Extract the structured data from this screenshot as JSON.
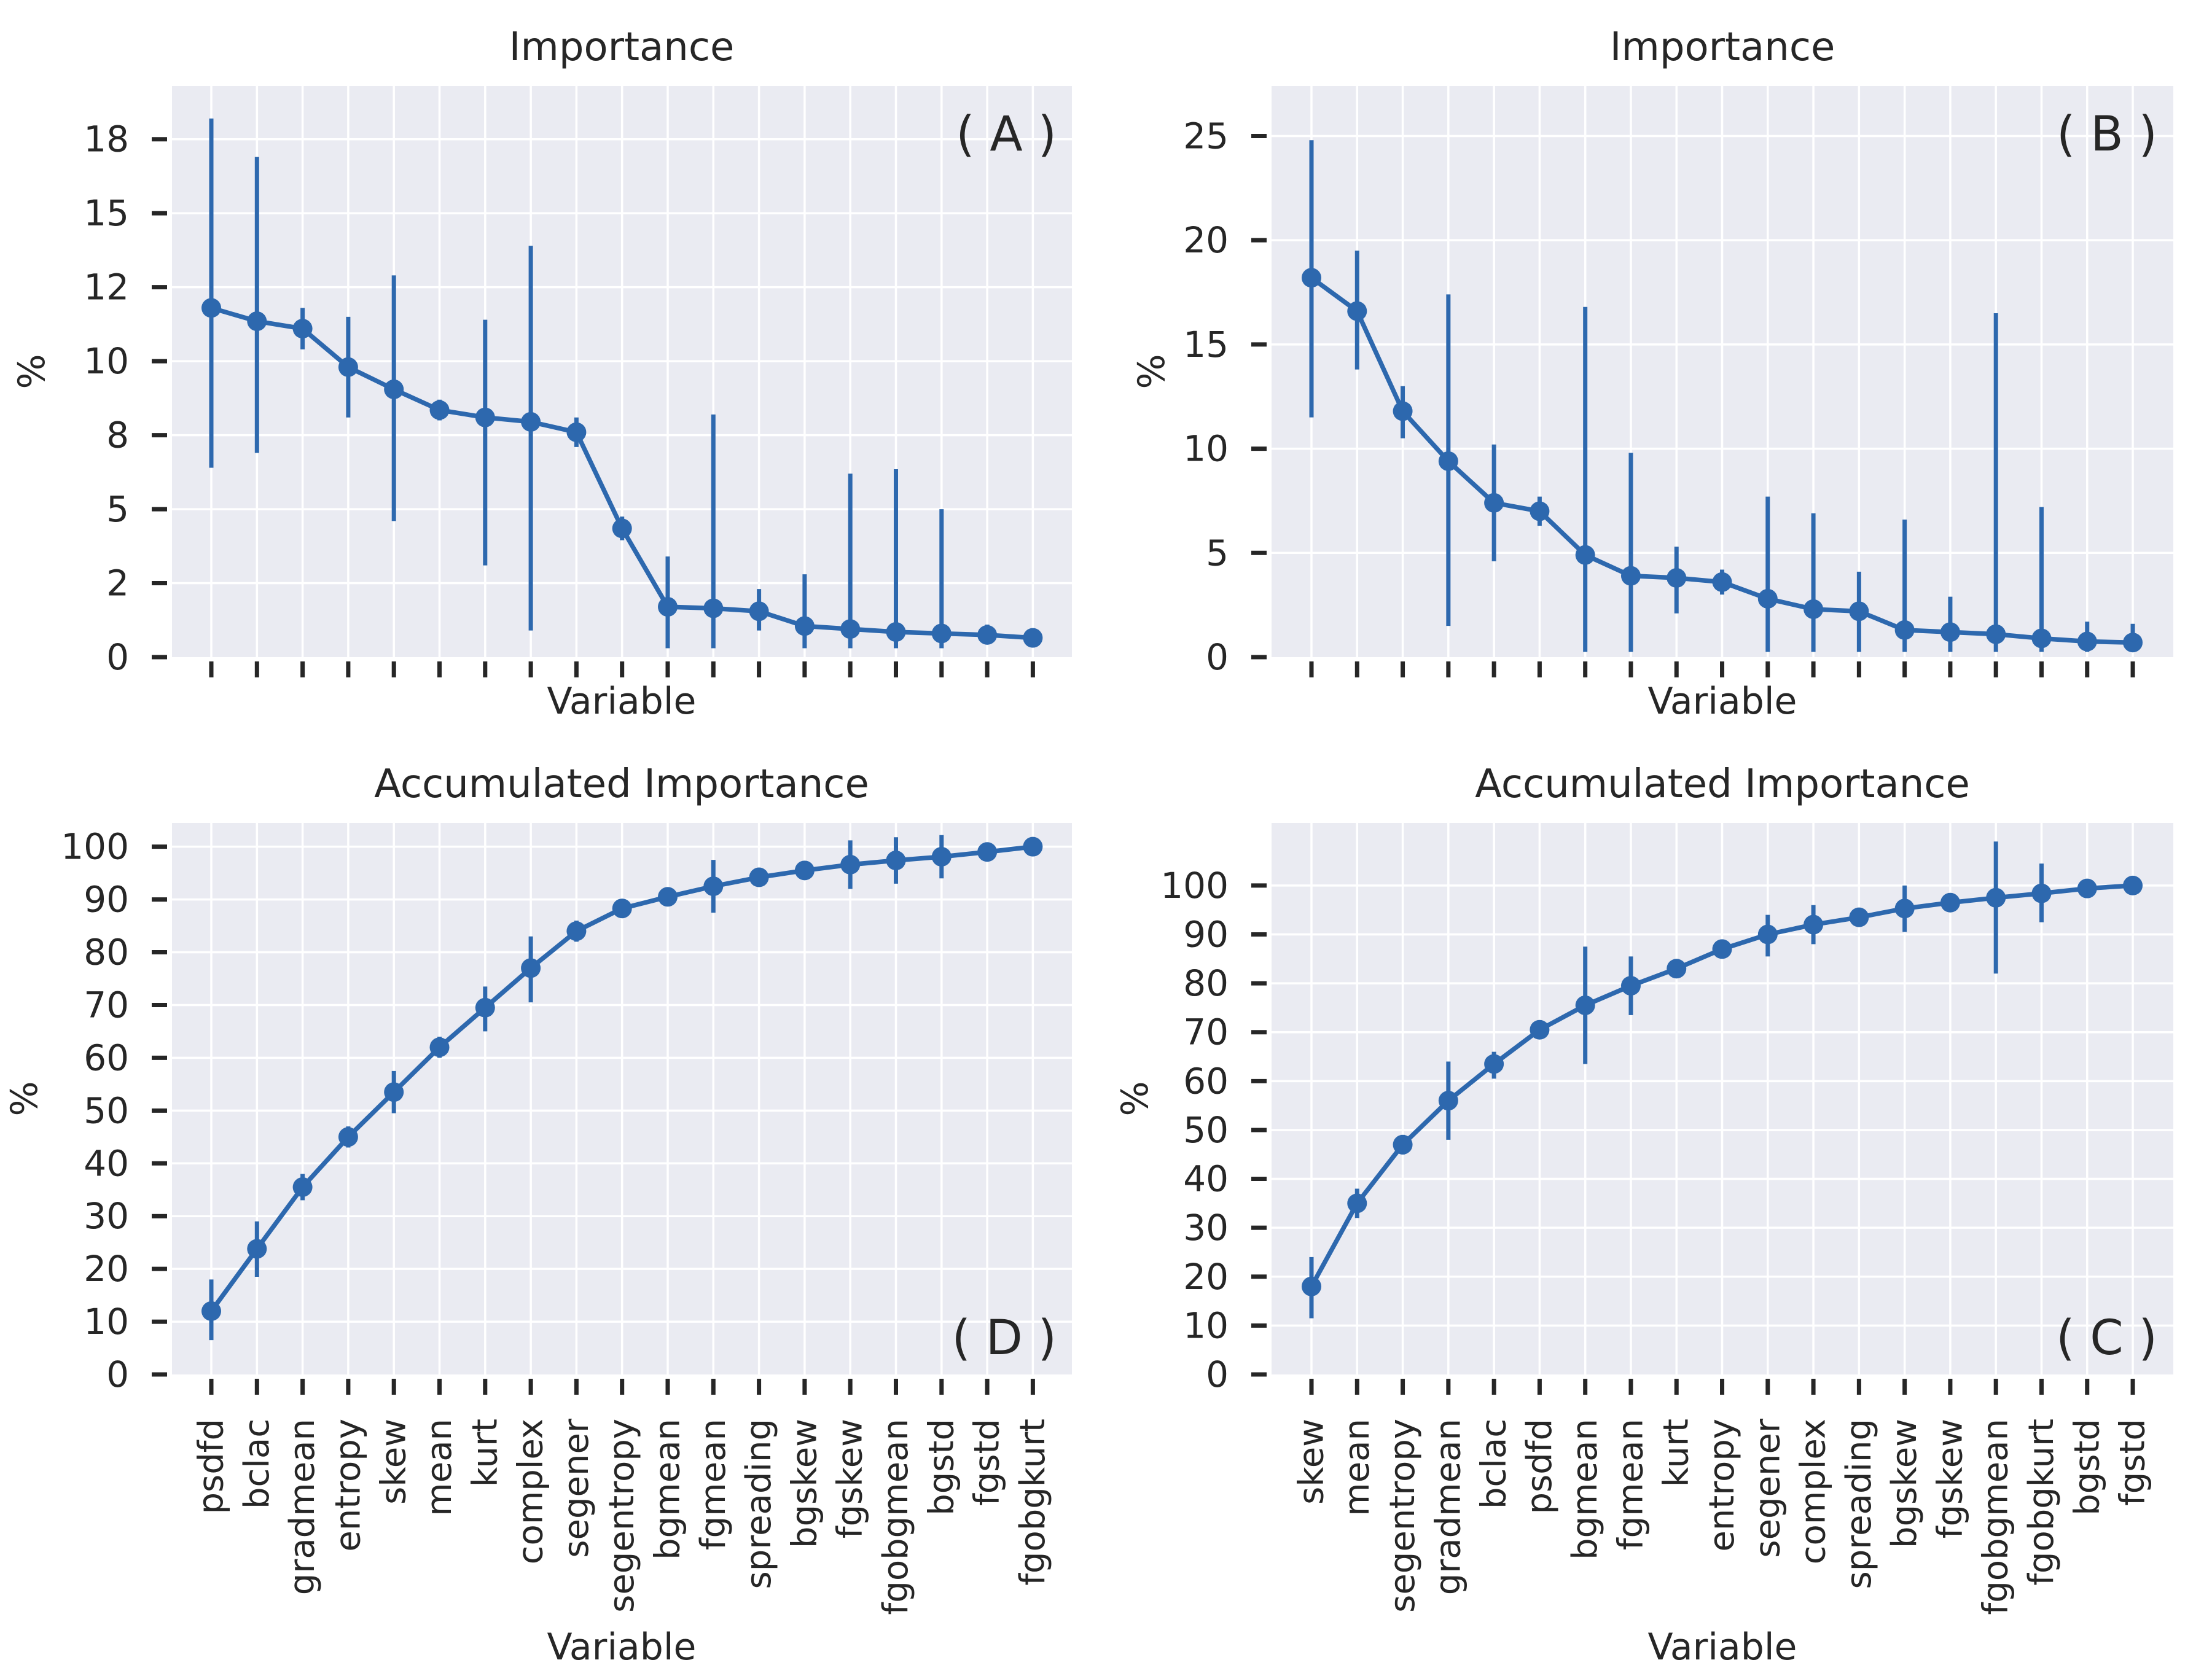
{
  "figure": {
    "background": "#ffffff",
    "plot_background": "#eaebf2",
    "grid_color": "#ffffff",
    "line_color": "#2d68ae",
    "tick_mark_color": "#262626",
    "text_color": "#262626"
  },
  "chart_data": [
    {
      "id": "A",
      "type": "line",
      "title": "Importance",
      "corner_label": "( A )",
      "corner_position": "top-right",
      "xlabel": "Variable",
      "ylabel": "%",
      "ylim": [
        0,
        19.3
      ],
      "yticks": [
        0,
        2.5,
        5,
        7.5,
        10,
        12.5,
        15,
        17.5
      ],
      "ytick_labels": [
        "0",
        "2",
        "5",
        "8",
        "10",
        "12",
        "15",
        "18"
      ],
      "grid": true,
      "show_category_labels": false,
      "categories": [
        "psdfd",
        "bclac",
        "gradmean",
        "entropy",
        "skew",
        "mean",
        "kurt",
        "complex",
        "segener",
        "segentropy",
        "bgmean",
        "fgmean",
        "spreading",
        "bgskew",
        "fgskew",
        "fgobgmean",
        "bgstd",
        "fgstd",
        "fgobgkurt"
      ],
      "values": [
        11.8,
        11.35,
        11.1,
        9.8,
        9.05,
        8.35,
        8.1,
        7.95,
        7.6,
        4.35,
        1.7,
        1.65,
        1.55,
        1.05,
        0.95,
        0.85,
        0.8,
        0.75,
        0.65
      ],
      "err_low": [
        6.4,
        6.9,
        10.4,
        8.1,
        4.6,
        8.0,
        3.1,
        0.9,
        7.1,
        3.95,
        0.3,
        0.3,
        0.9,
        0.3,
        0.3,
        0.3,
        0.3,
        0.5,
        0.65
      ],
      "err_high": [
        18.2,
        16.9,
        11.8,
        11.5,
        12.9,
        8.7,
        11.4,
        13.9,
        8.1,
        4.75,
        3.4,
        8.2,
        2.3,
        2.8,
        6.2,
        6.35,
        5.0,
        1.1,
        0.65
      ]
    },
    {
      "id": "B",
      "type": "line",
      "title": "Importance",
      "corner_label": "( B )",
      "corner_position": "top-right",
      "xlabel": "Variable",
      "ylabel": "%",
      "ylim": [
        0,
        27.4
      ],
      "yticks": [
        0,
        5,
        10,
        15,
        20,
        25
      ],
      "ytick_labels": [
        "0",
        "5",
        "10",
        "15",
        "20",
        "25"
      ],
      "grid": true,
      "show_category_labels": false,
      "categories": [
        "skew",
        "mean",
        "segentropy",
        "gradmean",
        "bclac",
        "psdfd",
        "bgmean",
        "fgmean",
        "kurt",
        "entropy",
        "segener",
        "complex",
        "spreading",
        "bgskew",
        "fgskew",
        "fgobgmean",
        "fgobgkurt",
        "bgstd",
        "fgstd"
      ],
      "values": [
        18.2,
        16.6,
        11.8,
        9.4,
        7.4,
        7.0,
        4.9,
        3.9,
        3.8,
        3.6,
        2.8,
        2.3,
        2.2,
        1.3,
        1.2,
        1.1,
        0.9,
        0.75,
        0.7
      ],
      "err_low": [
        11.5,
        13.8,
        10.5,
        1.5,
        4.6,
        6.3,
        0.25,
        0.25,
        2.1,
        3.0,
        0.25,
        0.25,
        0.25,
        0.25,
        0.25,
        0.25,
        0.25,
        0.25,
        0.25
      ],
      "err_high": [
        24.8,
        19.5,
        13.0,
        17.4,
        10.2,
        7.7,
        16.8,
        9.8,
        5.3,
        4.2,
        7.7,
        6.9,
        4.1,
        6.6,
        2.9,
        16.5,
        7.2,
        1.7,
        1.6
      ]
    },
    {
      "id": "D",
      "type": "line",
      "title": "Accumulated Importance",
      "corner_label": "( D )",
      "corner_position": "bottom-right",
      "xlabel": "Variable",
      "ylabel": "%",
      "ylim": [
        0,
        104.5
      ],
      "yticks": [
        0,
        10,
        20,
        30,
        40,
        50,
        60,
        70,
        80,
        90,
        100
      ],
      "ytick_labels": [
        "0",
        "10",
        "20",
        "30",
        "40",
        "50",
        "60",
        "70",
        "80",
        "90",
        "100"
      ],
      "grid": true,
      "show_category_labels": true,
      "categories": [
        "psdfd",
        "bclac",
        "gradmean",
        "entropy",
        "skew",
        "mean",
        "kurt",
        "complex",
        "segener",
        "segentropy",
        "bgmean",
        "fgmean",
        "spreading",
        "bgskew",
        "fgskew",
        "fgobgmean",
        "bgstd",
        "fgstd",
        "fgobgkurt"
      ],
      "values": [
        12,
        23.8,
        35.5,
        45,
        53.5,
        62,
        69.5,
        77,
        84,
        88.3,
        90.5,
        92.5,
        94.2,
        95.5,
        96.6,
        97.4,
        98.1,
        99,
        100
      ],
      "err_low": [
        6.5,
        18.5,
        33,
        43,
        49.5,
        60,
        65,
        70.5,
        82,
        86.8,
        89,
        87.5,
        93,
        94,
        92,
        93,
        94,
        98,
        100
      ],
      "err_high": [
        18,
        29,
        38,
        47,
        57.5,
        64,
        73.5,
        83,
        86,
        89.8,
        92,
        97.5,
        95.4,
        97,
        101.2,
        101.8,
        102.2,
        100,
        100
      ]
    },
    {
      "id": "C",
      "type": "line",
      "title": "Accumulated Importance",
      "corner_label": "( C )",
      "corner_position": "bottom-right",
      "xlabel": "Variable",
      "ylabel": "%",
      "ylim": [
        0,
        112.8
      ],
      "yticks": [
        0,
        10,
        20,
        30,
        40,
        50,
        60,
        70,
        80,
        90,
        100
      ],
      "ytick_labels": [
        "0",
        "10",
        "20",
        "30",
        "40",
        "50",
        "60",
        "70",
        "80",
        "90",
        "100"
      ],
      "grid": true,
      "show_category_labels": true,
      "categories": [
        "skew",
        "mean",
        "segentropy",
        "gradmean",
        "bclac",
        "psdfd",
        "bgmean",
        "fgmean",
        "kurt",
        "entropy",
        "segener",
        "complex",
        "spreading",
        "bgskew",
        "fgskew",
        "fgobgmean",
        "fgobgkurt",
        "bgstd",
        "fgstd"
      ],
      "values": [
        18,
        35,
        47,
        56,
        63.5,
        70.5,
        75.5,
        79.5,
        83,
        87,
        90,
        92,
        93.5,
        95.3,
        96.5,
        97.5,
        98.4,
        99.4,
        100
      ],
      "err_low": [
        11.5,
        32,
        45,
        48,
        60.5,
        69,
        63.5,
        73.5,
        81.5,
        86,
        85.5,
        88,
        92.5,
        90.5,
        95.5,
        82,
        92.5,
        98.4,
        100
      ],
      "err_high": [
        24,
        38,
        49,
        64,
        66,
        72,
        87.5,
        85.5,
        84.5,
        88,
        94,
        96,
        94.5,
        100,
        97.5,
        109,
        104.5,
        100.4,
        100
      ]
    }
  ]
}
